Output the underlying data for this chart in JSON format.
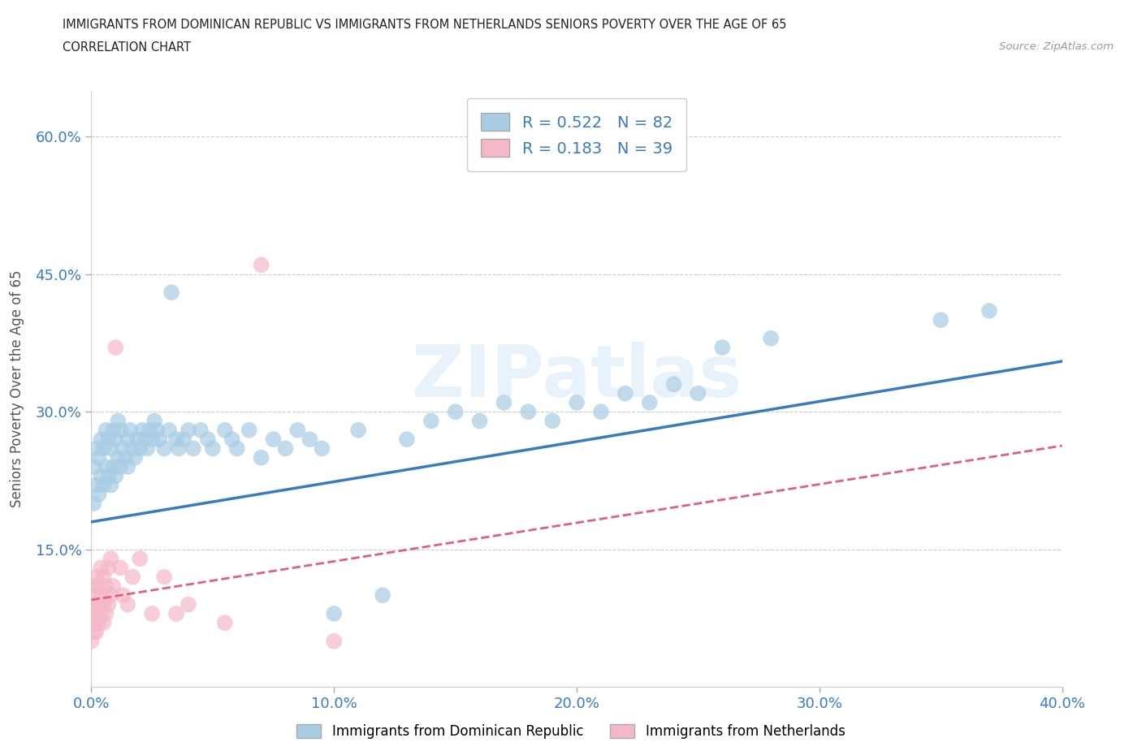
{
  "title_line1": "IMMIGRANTS FROM DOMINICAN REPUBLIC VS IMMIGRANTS FROM NETHERLANDS SENIORS POVERTY OVER THE AGE OF 65",
  "title_line2": "CORRELATION CHART",
  "source_text": "Source: ZipAtlas.com",
  "ylabel": "Seniors Poverty Over the Age of 65",
  "xlim": [
    0.0,
    0.4
  ],
  "ylim": [
    0.0,
    0.65
  ],
  "xtick_vals": [
    0.0,
    0.1,
    0.2,
    0.3,
    0.4
  ],
  "xtick_labels": [
    "0.0%",
    "10.0%",
    "20.0%",
    "30.0%",
    "40.0%"
  ],
  "ytick_vals": [
    0.15,
    0.3,
    0.45,
    0.6
  ],
  "ytick_labels": [
    "15.0%",
    "30.0%",
    "45.0%",
    "60.0%"
  ],
  "blue_color": "#a8cce4",
  "pink_color": "#f4b8c8",
  "blue_line_color": "#3a7bbf",
  "pink_line_color": "#e0607a",
  "legend_blue_R": "0.522",
  "legend_blue_N": "82",
  "legend_pink_R": "0.183",
  "legend_pink_N": "39",
  "watermark": "ZIPatlas",
  "blue_x": [
    0.001,
    0.001,
    0.002,
    0.002,
    0.003,
    0.003,
    0.004,
    0.004,
    0.005,
    0.005,
    0.006,
    0.006,
    0.007,
    0.007,
    0.008,
    0.008,
    0.009,
    0.009,
    0.01,
    0.01,
    0.011,
    0.011,
    0.012,
    0.012,
    0.013,
    0.014,
    0.015,
    0.015,
    0.016,
    0.017,
    0.018,
    0.019,
    0.02,
    0.021,
    0.022,
    0.023,
    0.024,
    0.025,
    0.026,
    0.027,
    0.028,
    0.03,
    0.032,
    0.033,
    0.035,
    0.036,
    0.038,
    0.04,
    0.042,
    0.045,
    0.048,
    0.05,
    0.055,
    0.058,
    0.06,
    0.065,
    0.07,
    0.075,
    0.08,
    0.085,
    0.09,
    0.095,
    0.1,
    0.11,
    0.12,
    0.13,
    0.14,
    0.15,
    0.16,
    0.17,
    0.18,
    0.19,
    0.2,
    0.21,
    0.22,
    0.23,
    0.24,
    0.25,
    0.26,
    0.28,
    0.35,
    0.37
  ],
  "blue_y": [
    0.2,
    0.24,
    0.22,
    0.26,
    0.21,
    0.25,
    0.23,
    0.27,
    0.22,
    0.26,
    0.24,
    0.28,
    0.23,
    0.27,
    0.22,
    0.26,
    0.24,
    0.28,
    0.23,
    0.27,
    0.25,
    0.29,
    0.24,
    0.28,
    0.26,
    0.25,
    0.27,
    0.24,
    0.28,
    0.26,
    0.25,
    0.27,
    0.26,
    0.28,
    0.27,
    0.26,
    0.28,
    0.27,
    0.29,
    0.28,
    0.27,
    0.26,
    0.28,
    0.43,
    0.27,
    0.26,
    0.27,
    0.28,
    0.26,
    0.28,
    0.27,
    0.26,
    0.28,
    0.27,
    0.26,
    0.28,
    0.25,
    0.27,
    0.26,
    0.28,
    0.27,
    0.26,
    0.08,
    0.28,
    0.1,
    0.27,
    0.29,
    0.3,
    0.29,
    0.31,
    0.3,
    0.29,
    0.31,
    0.3,
    0.32,
    0.31,
    0.33,
    0.32,
    0.37,
    0.38,
    0.4,
    0.41
  ],
  "pink_x": [
    0.0,
    0.0,
    0.001,
    0.001,
    0.001,
    0.001,
    0.002,
    0.002,
    0.002,
    0.002,
    0.003,
    0.003,
    0.003,
    0.004,
    0.004,
    0.004,
    0.005,
    0.005,
    0.005,
    0.006,
    0.006,
    0.007,
    0.007,
    0.008,
    0.008,
    0.009,
    0.01,
    0.012,
    0.013,
    0.015,
    0.017,
    0.02,
    0.025,
    0.03,
    0.035,
    0.04,
    0.055,
    0.07,
    0.1
  ],
  "pink_y": [
    0.05,
    0.08,
    0.06,
    0.09,
    0.07,
    0.11,
    0.06,
    0.08,
    0.1,
    0.12,
    0.07,
    0.09,
    0.11,
    0.08,
    0.1,
    0.13,
    0.07,
    0.09,
    0.12,
    0.08,
    0.11,
    0.09,
    0.13,
    0.1,
    0.14,
    0.11,
    0.37,
    0.13,
    0.1,
    0.09,
    0.12,
    0.14,
    0.08,
    0.12,
    0.08,
    0.09,
    0.07,
    0.46,
    0.05
  ]
}
